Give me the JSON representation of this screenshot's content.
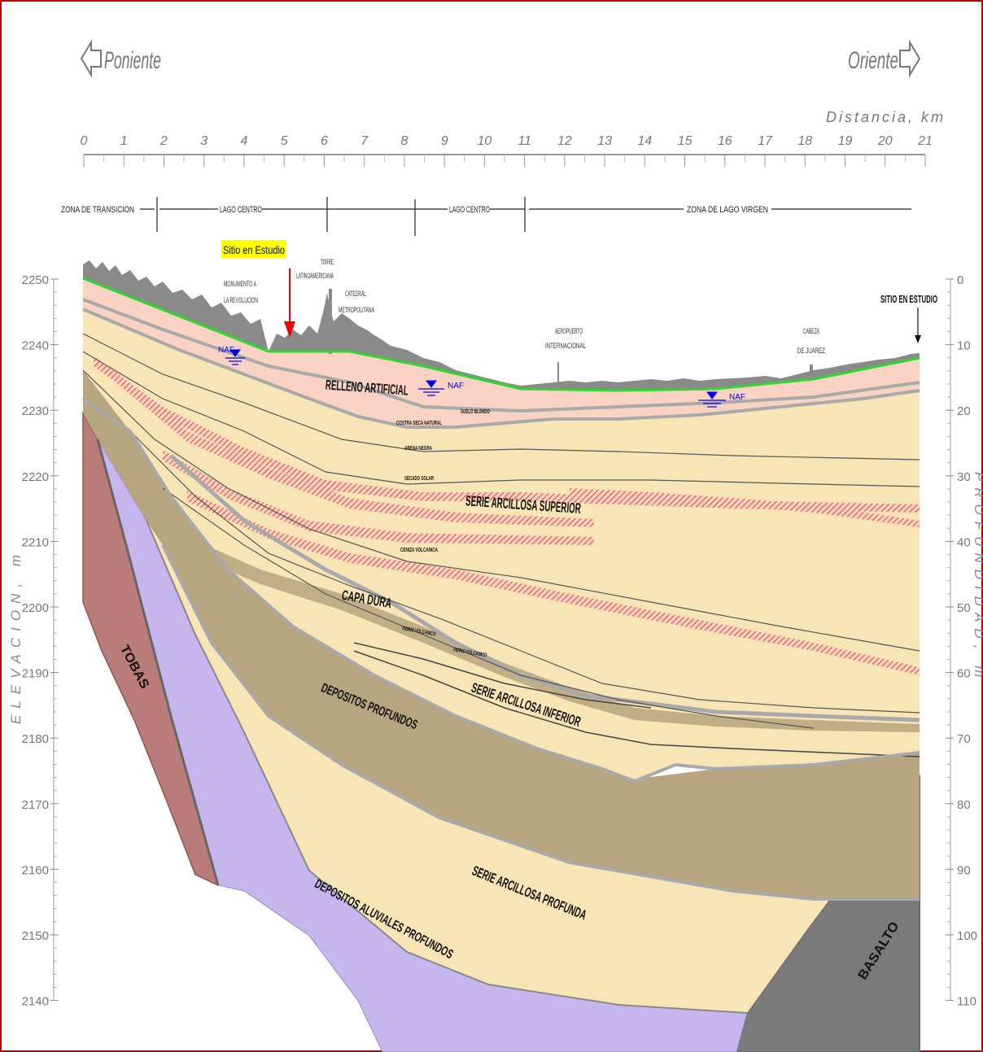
{
  "header": {
    "west_label": "Poniente",
    "east_label": "Oriente",
    "distance_label": "Distancia, km"
  },
  "distance_ticks": [
    "0",
    "1",
    "2",
    "3",
    "4",
    "5",
    "6",
    "7",
    "8",
    "9",
    "10",
    "11",
    "12",
    "13",
    "14",
    "15",
    "16",
    "17",
    "18",
    "19",
    "20",
    "21"
  ],
  "zones": [
    {
      "label": "ZONA DE TRANSICION"
    },
    {
      "label": "LAGO CENTRO"
    },
    {
      "label": "LAGO CENTRO"
    },
    {
      "label": "ZONA DE LAGO VIRGEN"
    }
  ],
  "site_label": "Sitio en Estudio",
  "site_label_east": "SITIO EN ESTUDIO",
  "landmarks": {
    "monumento": [
      "MONUMENTO A",
      "LA REVOLUCION"
    ],
    "torre": [
      "TORRE",
      "LATINOAMERICANA"
    ],
    "catedral": [
      "CATEDRAL",
      "METROPOLITANA"
    ],
    "aeropuerto": [
      "AEROPUERTO",
      "INTERNACIONAL"
    ],
    "cabeza": [
      "CABEZA",
      "DE JUAREZ"
    ]
  },
  "naf_label": "NAF",
  "units": {
    "relleno": "RELLENO ARTIFICIAL",
    "suelo_blando": "SUELO BLANDO",
    "costra": "COSTRA SECA NATURAL",
    "arena_negra": "ARENA NEGRA",
    "secado_solar": "SECADO SOLAR",
    "sas": "SERIE ARCILLOSA SUPERIOR",
    "ceniza": "CENIZA VOLCANICA",
    "capa_dura": "CAPA DURA",
    "vidrio1": "VIDRIO VOLCANICO",
    "vidrio2": "VIDRIO VOLCANICO",
    "dep_prof": "DEPOSITOS PROFUNDOS",
    "sai": "SERIE ARCILLOSA INFERIOR",
    "sap": "SERIE ARCILLOSA PROFUNDA",
    "aluviales": "DEPOSITOS ALUVIALES PROFUNDOS",
    "tobas": "TOBAS",
    "basalto": "BASALTO"
  },
  "elevation_axis": {
    "title": "ELEVACION, m",
    "ticks": [
      "2250",
      "2240",
      "2230",
      "2220",
      "2210",
      "2200",
      "2190",
      "2180",
      "2170",
      "2160",
      "2150",
      "2140"
    ]
  },
  "depth_axis": {
    "title": "PROFUNDIDAD, m",
    "ticks": [
      "0",
      "10",
      "20",
      "30",
      "40",
      "50",
      "60",
      "70",
      "80",
      "90",
      "100",
      "110"
    ]
  },
  "colors": {
    "frame": "#c00000",
    "relleno": "#f9d2c3",
    "clay": "#f7e5b5",
    "dep_profundos": "#b6a57f",
    "capa_dura": "#b6a57f",
    "aluviales": "#c6b6ee",
    "tobas": "#b97c78",
    "basalto": "#7a7a7a",
    "ground_line": "#2fd82f",
    "site_label_bg": "#ffff00",
    "arrow": "#ee0000",
    "naf": "#0000ee",
    "hatch": "#e0503a"
  }
}
